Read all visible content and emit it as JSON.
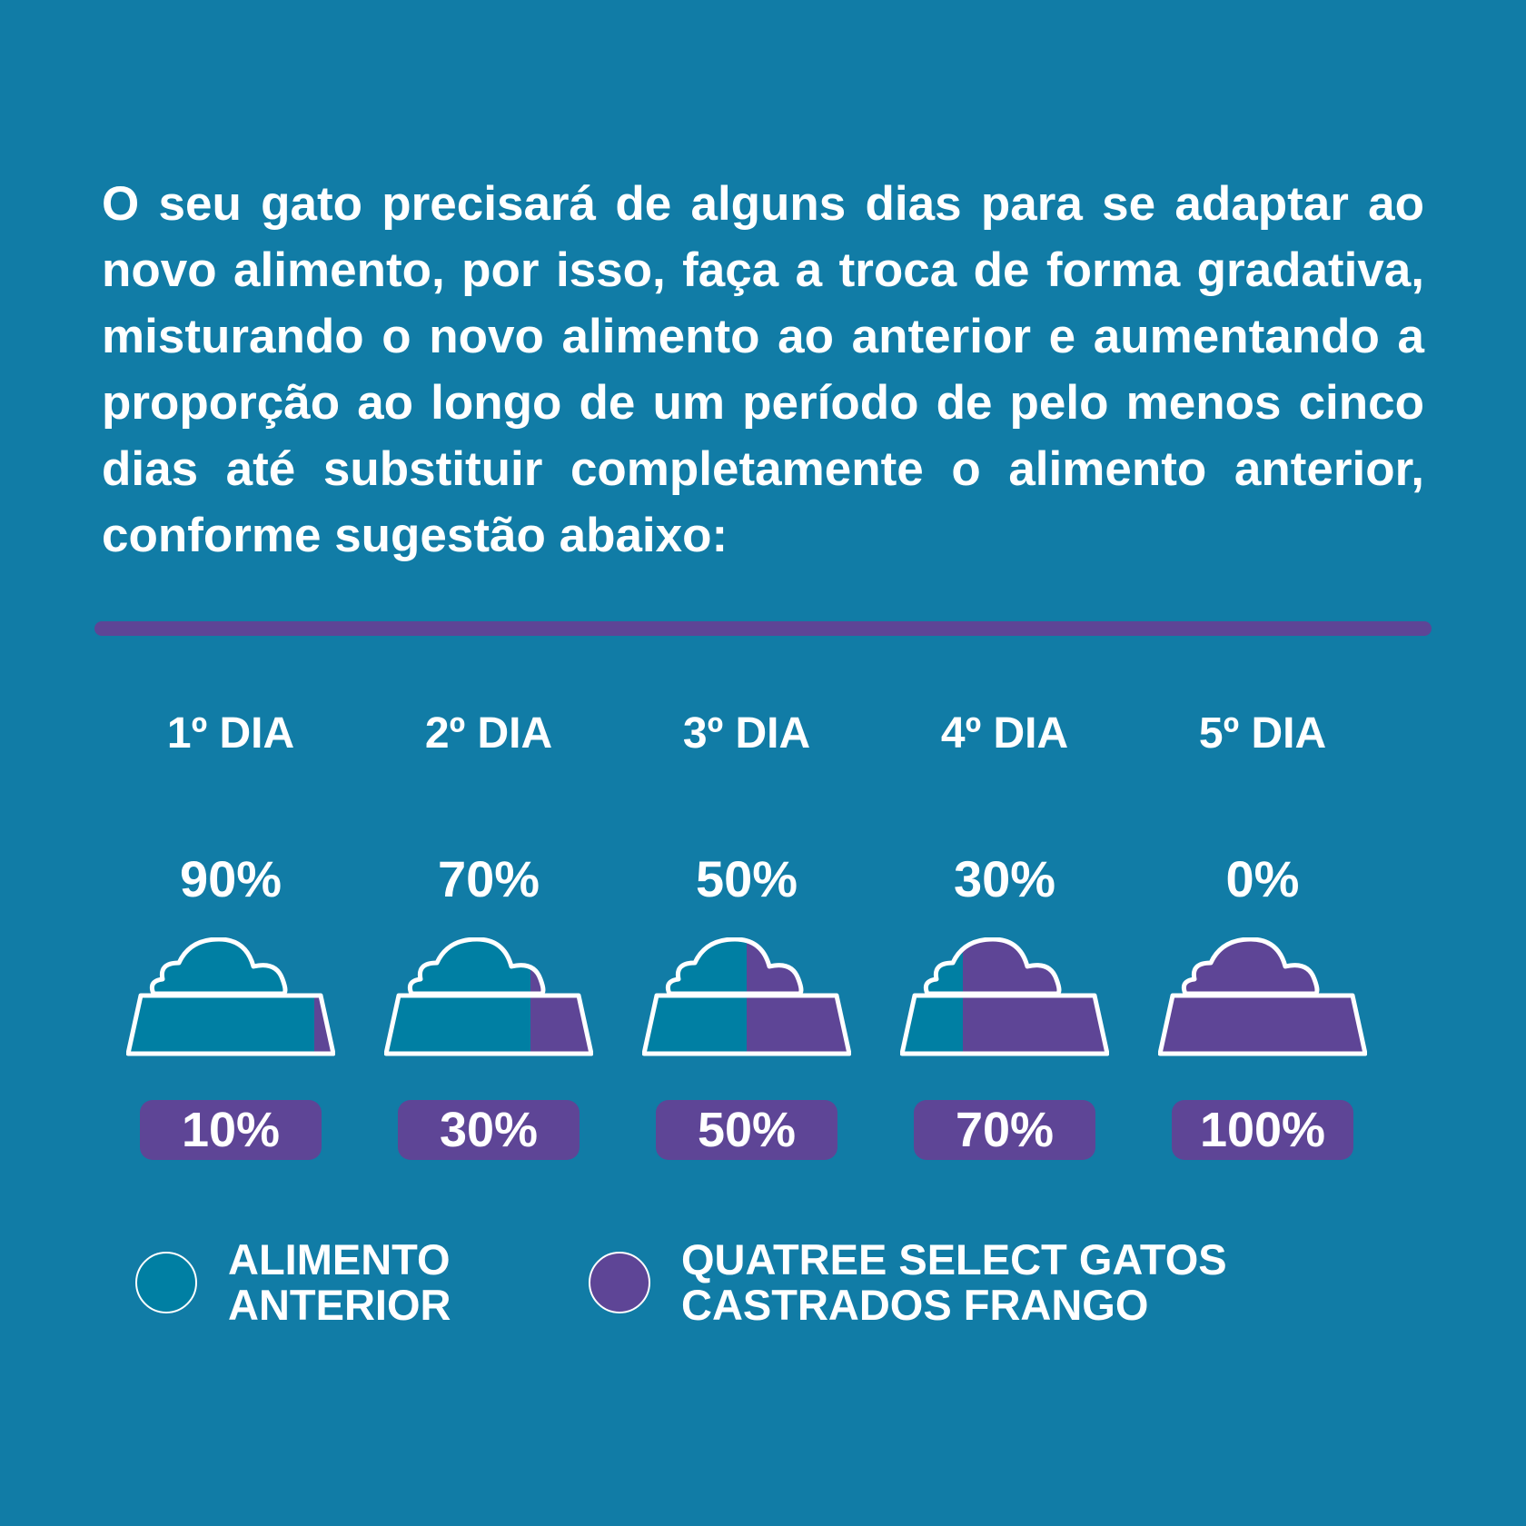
{
  "intro_text": "O seu gato precisará de alguns dias para se adaptar ao novo alimento, por isso, faça a troca de forma gradativa, misturando o novo alimento ao anterior e aumentando a proporção ao longo de um período de pelo menos cinco dias até substituir completamente o alimento anterior, conforme sugestão abaixo:",
  "days": [
    {
      "label": "1º DIA",
      "old_pct": "90%",
      "new_pct": "10%",
      "new_share": 0.1
    },
    {
      "label": "2º DIA",
      "old_pct": "70%",
      "new_pct": "30%",
      "new_share": 0.3
    },
    {
      "label": "3º DIA",
      "old_pct": "50%",
      "new_pct": "50%",
      "new_share": 0.5
    },
    {
      "label": "4º DIA",
      "old_pct": "30%",
      "new_pct": "70%",
      "new_share": 0.7
    },
    {
      "label": "5º DIA",
      "old_pct": "0%",
      "new_pct": "100%",
      "new_share": 1.0
    }
  ],
  "legend": {
    "old_food": {
      "line1": "ALIMENTO",
      "line2": "ANTERIOR",
      "color": "#007fa3"
    },
    "new_food": {
      "line1": "QUATREE SELECT GATOS",
      "line2": "CASTRADOS FRANGO",
      "color": "#5e4596"
    }
  },
  "colors": {
    "background": "#117ca6",
    "old_food": "#007fa3",
    "new_food": "#5e4596",
    "divider": "#5e4596"
  }
}
